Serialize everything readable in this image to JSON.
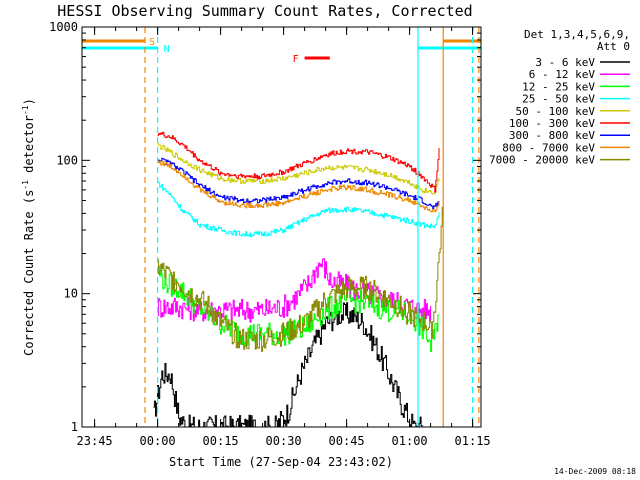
{
  "chart_data": {
    "type": "line",
    "title": "HESSI Observing Summary Count Rates, Corrected",
    "xlabel": "Start Time (27-Sep-04 23:43:02)",
    "ylabel": "Corrected Count Rate (s",
    "ylabel_sup1": "-1",
    "ylabel_mid": " detector",
    "ylabel_sup2": "-1",
    "ylabel_end": ")",
    "yscale": "log",
    "ylim": [
      1,
      1000
    ],
    "xlim_minutes": [
      -18,
      77
    ],
    "xticks": [
      {
        "label": "23:45",
        "m": -15
      },
      {
        "label": "00:00",
        "m": 0
      },
      {
        "label": "00:15",
        "m": 15
      },
      {
        "label": "00:30",
        "m": 30
      },
      {
        "label": "00:45",
        "m": 45
      },
      {
        "label": "01:00",
        "m": 60
      },
      {
        "label": "01:15",
        "m": 75
      }
    ],
    "yticks": [
      {
        "label": "1",
        "v": 1
      },
      {
        "label": "10",
        "v": 10
      },
      {
        "label": "100",
        "v": 100
      },
      {
        "label": "1000",
        "v": 1000
      }
    ],
    "legend_header": [
      "Det 1,3,4,5,6,9,",
      "Att 0"
    ],
    "legend_position": "right",
    "series": [
      {
        "name": "3 - 6 keV",
        "color": "#000000",
        "m": [
          -1,
          1,
          3,
          5,
          7,
          9,
          11,
          14,
          17,
          21,
          25,
          28,
          31,
          34,
          37,
          40,
          43,
          46,
          49,
          52,
          55,
          58,
          61,
          63
        ],
        "v": [
          1.2,
          2.5,
          2.5,
          1.2,
          1,
          1,
          1,
          1,
          1,
          1,
          1,
          1,
          1.3,
          2.5,
          4,
          6,
          7,
          7,
          6,
          4,
          2.5,
          1.5,
          1,
          1
        ]
      },
      {
        "name": "6 - 12 keV",
        "color": "#ff00ff",
        "m": [
          0,
          5,
          10,
          15,
          20,
          25,
          30,
          33,
          36,
          38,
          39,
          40,
          41,
          43,
          46,
          50,
          55,
          60,
          63,
          65
        ],
        "v": [
          8,
          8,
          7.5,
          7.5,
          7.5,
          7.5,
          8,
          9.5,
          12,
          16,
          17,
          15,
          12.5,
          12,
          11,
          10,
          9,
          8,
          7.5,
          7.5
        ]
      },
      {
        "name": "12 - 25 keV",
        "color": "#00ff00",
        "m": [
          0,
          2,
          5,
          8,
          12,
          15,
          20,
          25,
          30,
          35,
          40,
          45,
          50,
          55,
          60,
          64,
          65,
          66,
          67
        ],
        "v": [
          15,
          12,
          11,
          9,
          7,
          6,
          5,
          5,
          5,
          5.5,
          7.5,
          9,
          8.5,
          7.5,
          7,
          5,
          4,
          5,
          8
        ]
      },
      {
        "name": "25 - 50 keV",
        "color": "#00ffff",
        "m": [
          0,
          3,
          6,
          10,
          15,
          20,
          25,
          30,
          35,
          40,
          45,
          50,
          55,
          60,
          63,
          65,
          66,
          67
        ],
        "v": [
          68,
          55,
          42,
          33,
          30,
          28,
          28,
          30,
          36,
          42,
          43,
          41,
          38,
          35,
          33,
          32,
          32,
          40
        ]
      },
      {
        "name": "50 - 100 keV",
        "color": "#cccc00",
        "m": [
          0,
          3,
          6,
          10,
          15,
          20,
          25,
          30,
          35,
          40,
          45,
          50,
          55,
          60,
          63,
          65,
          66,
          67
        ],
        "v": [
          130,
          115,
          100,
          85,
          73,
          70,
          70,
          73,
          80,
          88,
          88,
          85,
          78,
          68,
          60,
          58,
          58,
          75
        ]
      },
      {
        "name": "100 - 300 keV",
        "color": "#ff0000",
        "m": [
          0,
          3,
          6,
          10,
          15,
          20,
          25,
          30,
          35,
          40,
          45,
          50,
          55,
          60,
          63,
          65,
          66,
          67
        ],
        "v": [
          160,
          150,
          130,
          100,
          80,
          76,
          76,
          82,
          95,
          110,
          118,
          115,
          105,
          90,
          75,
          65,
          60,
          120
        ]
      },
      {
        "name": "300 - 800 keV",
        "color": "#0000ff",
        "m": [
          0,
          3,
          6,
          10,
          15,
          20,
          25,
          30,
          35,
          40,
          45,
          50,
          55,
          60,
          63,
          65,
          66,
          67
        ],
        "v": [
          102,
          95,
          82,
          65,
          53,
          50,
          50,
          53,
          60,
          67,
          70,
          68,
          62,
          54,
          50,
          45,
          44,
          50
        ]
      },
      {
        "name": "800 - 7000 keV",
        "color": "#ee8800",
        "m": [
          0,
          3,
          6,
          10,
          15,
          20,
          25,
          30,
          35,
          40,
          45,
          50,
          55,
          60,
          63,
          65,
          66,
          67
        ],
        "v": [
          98,
          90,
          78,
          60,
          49,
          46,
          46,
          48,
          54,
          60,
          63,
          60,
          55,
          50,
          45,
          42,
          41,
          47
        ]
      },
      {
        "name": "7000 - 20000 keV",
        "color": "#888800",
        "m": [
          0,
          2,
          5,
          8,
          12,
          15,
          20,
          25,
          30,
          35,
          40,
          45,
          50,
          55,
          60,
          64,
          65,
          66,
          67,
          68
        ],
        "v": [
          16,
          14,
          12,
          10,
          8,
          6,
          4.5,
          4.5,
          5,
          6,
          9,
          11,
          11,
          9,
          7,
          6,
          5,
          8,
          20,
          45
        ]
      }
    ],
    "annotations": [
      {
        "label": "S",
        "color": "#ee8800",
        "m": -3,
        "kind": "attenuator-bar"
      },
      {
        "label": "N",
        "color": "#00ffff",
        "m": 0,
        "kind": "night-bar"
      },
      {
        "label": "F",
        "color": "#ff0000",
        "m": 38,
        "kind": "flare-bar"
      }
    ],
    "vertical_markers": [
      {
        "m": -3,
        "color": "#ee8800",
        "style": "dashed"
      },
      {
        "m": 0,
        "color": "#00ffff",
        "style": "dashed"
      },
      {
        "m": 62,
        "color": "#00ffff",
        "style": "solid"
      },
      {
        "m": 68,
        "color": "#ee8800",
        "style": "solid"
      },
      {
        "m": 75,
        "color": "#00ffff",
        "style": "dashed"
      },
      {
        "m": 76.5,
        "color": "#ee8800",
        "style": "dashed"
      }
    ]
  },
  "footer_timestamp": "14-Dec-2009 08:18"
}
